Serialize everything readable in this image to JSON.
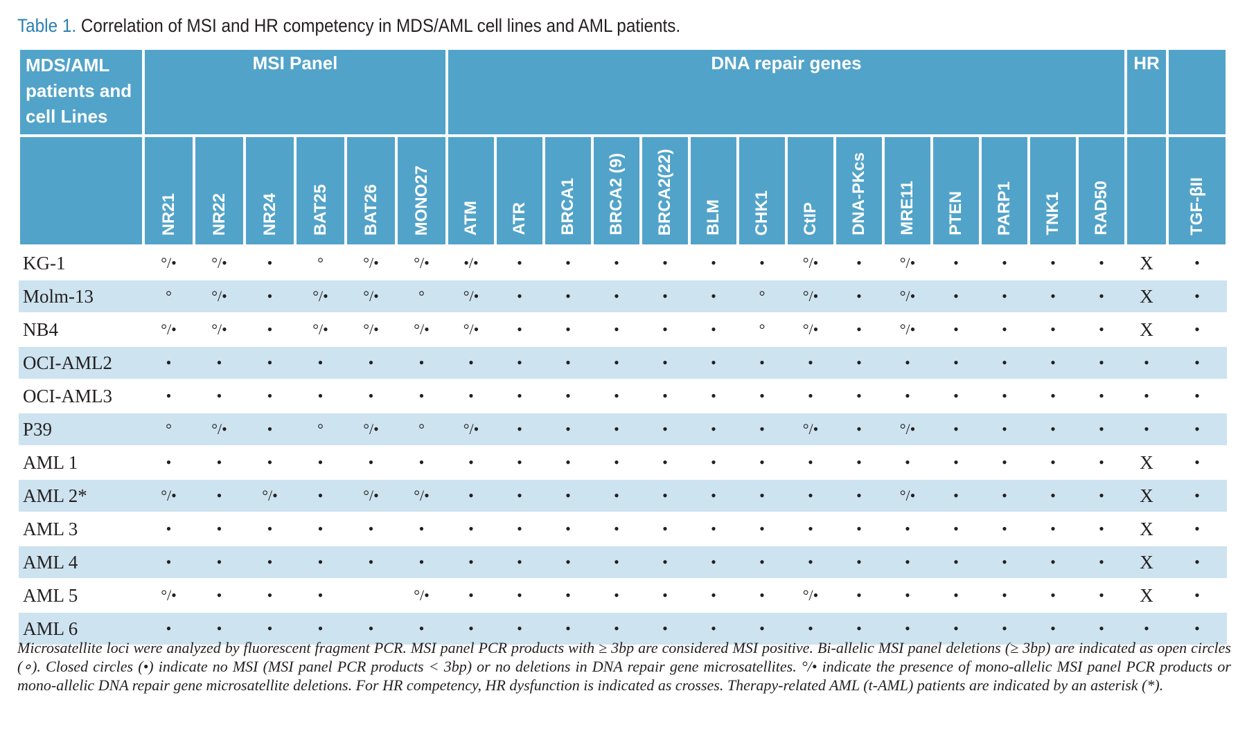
{
  "title": {
    "number": "Table 1.",
    "text": "Correlation of MSI and HR competency in MDS/AML cell lines and AML patients."
  },
  "table": {
    "row_header": "MDS/AML patients and cell Lines",
    "msi_panel": {
      "label": "MSI Panel",
      "columns": [
        "NR21",
        "NR22",
        "NR24",
        "BAT25",
        "BAT26",
        "MONO27"
      ]
    },
    "dna_repair_genes": {
      "label": "DNA repair genes",
      "columns": [
        "ATM",
        "ATR",
        "BRCA1",
        "BRCA2 (9)",
        "BRCA2(22)",
        "BLM",
        "CHK1",
        "CtIP",
        "DNA-PKcs",
        "MRE11",
        "PTEN",
        "PARP1",
        "TNK1",
        "RAD50"
      ]
    },
    "hr_label": "HR",
    "tgf_column": "TGF-βII",
    "rows": [
      {
        "name": "KG-1",
        "cells": [
          "°/•",
          "°/•",
          "•",
          "°",
          "°/•",
          "°/•",
          "•/•",
          "•",
          "•",
          "•",
          "•",
          "•",
          "•",
          "°/•",
          "•",
          "°/•",
          "•",
          "•",
          "•",
          "•",
          "X",
          "•"
        ]
      },
      {
        "name": "Molm-13",
        "cells": [
          "°",
          "°/•",
          "•",
          "°/•",
          "°/•",
          "°",
          "°/•",
          "•",
          "•",
          "•",
          "•",
          "•",
          "°",
          "°/•",
          "•",
          "°/•",
          "•",
          "•",
          "•",
          "•",
          "X",
          "•"
        ]
      },
      {
        "name": "NB4",
        "cells": [
          "°/•",
          "°/•",
          "•",
          "°/•",
          "°/•",
          "°/•",
          "°/•",
          "•",
          "•",
          "•",
          "•",
          "•",
          "°",
          "°/•",
          "•",
          "°/•",
          "•",
          "•",
          "•",
          "•",
          "X",
          "•"
        ]
      },
      {
        "name": "OCI-AML2",
        "cells": [
          "•",
          "•",
          "•",
          "•",
          "•",
          "•",
          "•",
          "•",
          "•",
          "•",
          "•",
          "•",
          "•",
          "•",
          "•",
          "•",
          "•",
          "•",
          "•",
          "•",
          "•",
          "•"
        ]
      },
      {
        "name": "OCI-AML3",
        "cells": [
          "•",
          "•",
          "•",
          "•",
          "•",
          "•",
          "•",
          "•",
          "•",
          "•",
          "•",
          "•",
          "•",
          "•",
          "•",
          "•",
          "•",
          "•",
          "•",
          "•",
          "•",
          "•"
        ]
      },
      {
        "name": "P39",
        "cells": [
          "°",
          "°/•",
          "•",
          "°",
          "°/•",
          "°",
          "°/•",
          "•",
          "•",
          "•",
          "•",
          "•",
          "•",
          "°/•",
          "•",
          "°/•",
          "•",
          "•",
          "•",
          "•",
          "•",
          "•"
        ]
      },
      {
        "name": "AML 1",
        "cells": [
          "•",
          "•",
          "•",
          "•",
          "•",
          "•",
          "•",
          "•",
          "•",
          "•",
          "•",
          "•",
          "•",
          "•",
          "•",
          "•",
          "•",
          "•",
          "•",
          "•",
          "X",
          "•"
        ]
      },
      {
        "name": "AML 2*",
        "cells": [
          "°/•",
          "•",
          "°/•",
          "•",
          "°/•",
          "°/•",
          "•",
          "•",
          "•",
          "•",
          "•",
          "•",
          "•",
          "•",
          "•",
          "°/•",
          "•",
          "•",
          "•",
          "•",
          "X",
          "•"
        ]
      },
      {
        "name": "AML 3",
        "cells": [
          "•",
          "•",
          "•",
          "•",
          "•",
          "•",
          "•",
          "•",
          "•",
          "•",
          "•",
          "•",
          "•",
          "•",
          "•",
          "•",
          "•",
          "•",
          "•",
          "•",
          "X",
          "•"
        ]
      },
      {
        "name": "AML 4",
        "cells": [
          "•",
          "•",
          "•",
          "•",
          "•",
          "•",
          "•",
          "•",
          "•",
          "•",
          "•",
          "•",
          "•",
          "•",
          "•",
          "•",
          "•",
          "•",
          "•",
          "•",
          "X",
          "•"
        ]
      },
      {
        "name": "AML 5",
        "cells": [
          "°/•",
          "•",
          "•",
          "•",
          null,
          "°/•",
          "•",
          "•",
          "•",
          "•",
          "•",
          "•",
          "•",
          "°/•",
          "•",
          "•",
          "•",
          "•",
          "•",
          "•",
          "X",
          "•"
        ]
      },
      {
        "name": "AML 6",
        "cells": [
          "•",
          "•",
          "•",
          "•",
          "•",
          "•",
          "•",
          "•",
          "•",
          "•",
          "•",
          "•",
          "•",
          "•",
          "•",
          "•",
          "•",
          "•",
          "•",
          "•",
          "•",
          "•"
        ]
      }
    ]
  },
  "footnote": "Microsatellite loci were analyzed by fluorescent fragment PCR. MSI panel PCR products with ≥ 3bp are considered MSI positive. Bi-allelic MSI panel deletions (≥ 3bp) are indicated as open circles (∘). Closed circles (•) indicate no MSI (MSI panel PCR products < 3bp) or no deletions in DNA repair gene microsatellites. °/• indicate the presence of mono-allelic MSI panel PCR products or mono-allelic DNA repair gene microsatellite deletions. For HR competency, HR dysfunction is indicated as crosses. Therapy-related AML (t-AML) patients are indicated by an asterisk (*)."
}
